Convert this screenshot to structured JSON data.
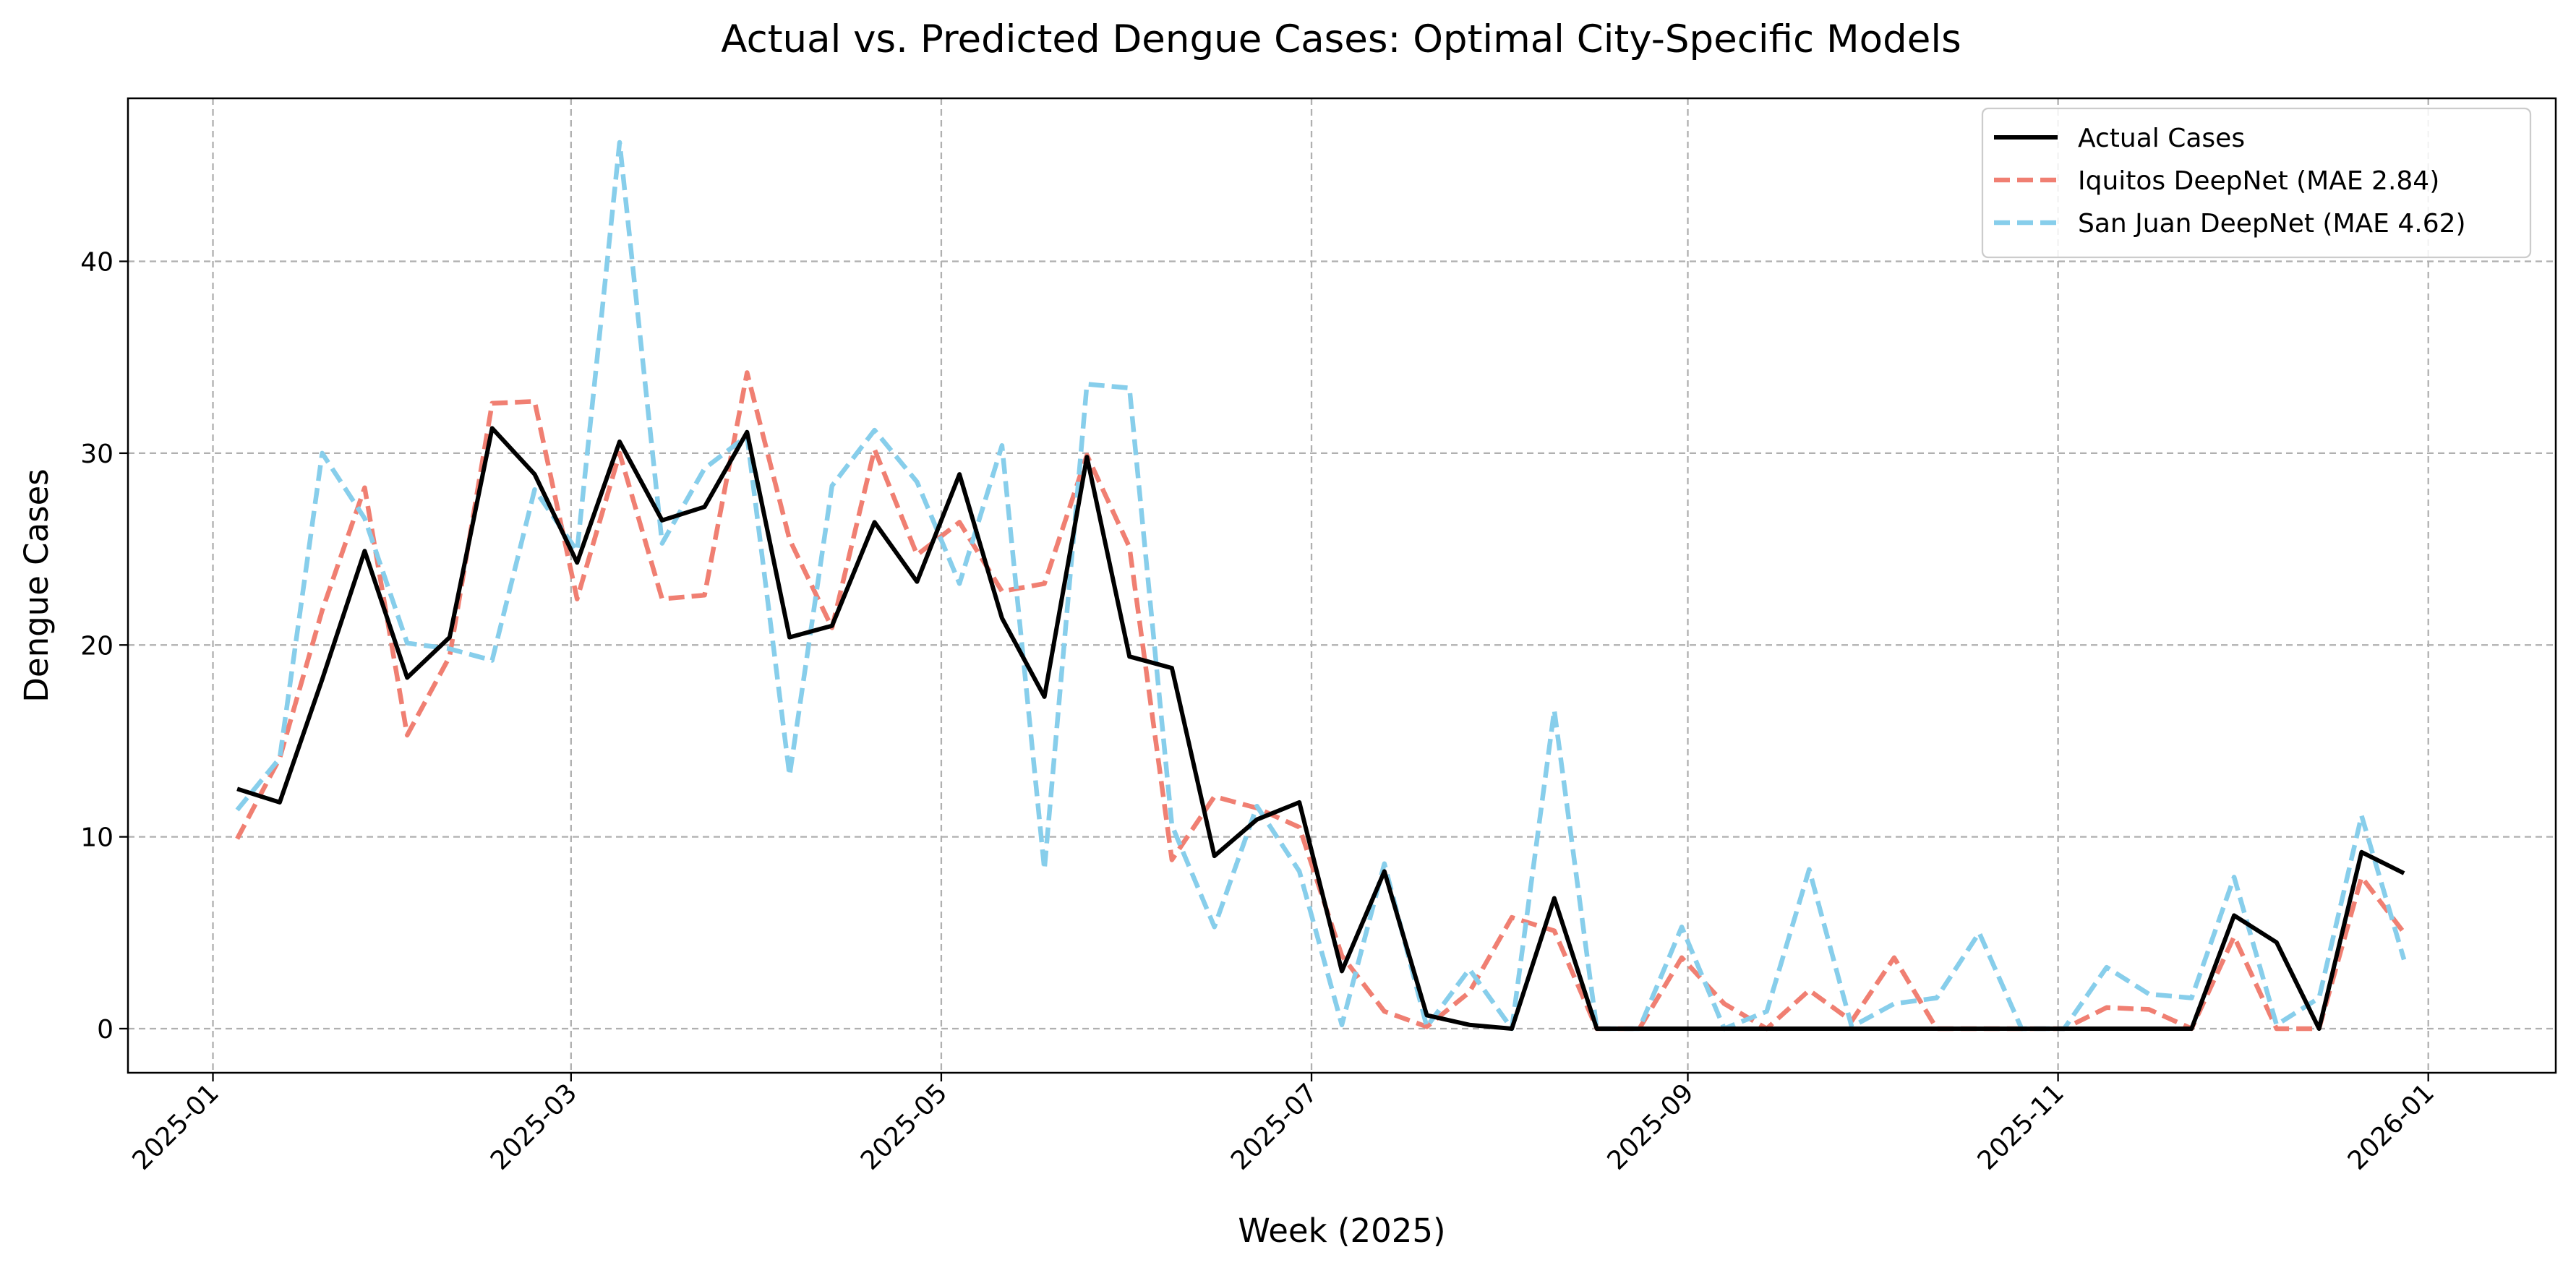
{
  "chart_data": {
    "type": "line",
    "title": "Actual vs. Predicted Dengue Cases: Optimal City-Specific Models",
    "xlabel": "Week (2025)",
    "ylabel": "Dengue Cases",
    "xlim": [
      "2024-12-18",
      "2026-01-22"
    ],
    "ylim": [
      -2.3,
      48.5
    ],
    "grid": true,
    "legend_position": "top-right",
    "x_ticks": [
      "2025-01",
      "2025-03",
      "2025-05",
      "2025-07",
      "2025-09",
      "2025-11",
      "2026-01"
    ],
    "y_ticks": [
      0,
      10,
      20,
      30,
      40
    ],
    "x": [
      "2025-01-05",
      "2025-01-12",
      "2025-01-19",
      "2025-01-26",
      "2025-02-02",
      "2025-02-09",
      "2025-02-16",
      "2025-02-23",
      "2025-03-02",
      "2025-03-09",
      "2025-03-16",
      "2025-03-23",
      "2025-03-30",
      "2025-04-06",
      "2025-04-13",
      "2025-04-20",
      "2025-04-27",
      "2025-05-04",
      "2025-05-11",
      "2025-05-18",
      "2025-05-25",
      "2025-06-01",
      "2025-06-08",
      "2025-06-15",
      "2025-06-22",
      "2025-06-29",
      "2025-07-06",
      "2025-07-13",
      "2025-07-20",
      "2025-07-27",
      "2025-08-03",
      "2025-08-10",
      "2025-08-17",
      "2025-08-24",
      "2025-08-31",
      "2025-09-07",
      "2025-09-14",
      "2025-09-21",
      "2025-09-28",
      "2025-10-05",
      "2025-10-12",
      "2025-10-19",
      "2025-10-26",
      "2025-11-02",
      "2025-11-09",
      "2025-11-16",
      "2025-11-23",
      "2025-11-30",
      "2025-12-07",
      "2025-12-14",
      "2025-12-21",
      "2025-12-28"
    ],
    "series": [
      {
        "name": "Actual Cases",
        "color": "#000000",
        "dashed": false,
        "values": [
          12.5,
          11.8,
          18.2,
          24.9,
          18.3,
          20.4,
          31.3,
          28.9,
          24.3,
          30.6,
          26.5,
          27.2,
          31.1,
          20.4,
          21.0,
          26.4,
          23.3,
          28.9,
          21.4,
          17.3,
          29.8,
          19.4,
          18.8,
          9.0,
          10.9,
          11.8,
          3.0,
          8.2,
          0.7,
          0.2,
          0.0,
          6.8,
          0.0,
          0.0,
          0.0,
          0.0,
          0.0,
          0.0,
          0.0,
          0.0,
          0.0,
          0.0,
          0.0,
          0.0,
          0.0,
          0.0,
          0.0,
          5.9,
          4.5,
          0.0,
          9.2,
          8.1
        ]
      },
      {
        "name": "Iquitos DeepNet (MAE 2.84)",
        "color": "#f07f72",
        "dashed": true,
        "values": [
          9.9,
          14.1,
          21.8,
          28.2,
          15.3,
          19.4,
          32.6,
          32.7,
          22.4,
          30.0,
          22.4,
          22.6,
          34.2,
          25.5,
          20.9,
          30.2,
          24.7,
          26.4,
          22.8,
          23.2,
          29.9,
          25.1,
          8.8,
          12.1,
          11.5,
          10.5,
          3.8,
          0.9,
          0.1,
          1.9,
          5.8,
          5.1,
          0.0,
          0.0,
          3.7,
          1.3,
          0.0,
          2.0,
          0.4,
          3.7,
          0.0,
          0.0,
          0.0,
          0.0,
          1.1,
          1.0,
          0.0,
          4.8,
          0.0,
          0.0,
          7.9,
          5.0
        ]
      },
      {
        "name": "San Juan DeepNet (MAE 4.62)",
        "color": "#87ceeb",
        "dashed": true,
        "values": [
          11.4,
          14.1,
          30.0,
          26.6,
          20.1,
          19.8,
          19.2,
          28.1,
          24.9,
          46.2,
          25.3,
          29.2,
          30.9,
          13.2,
          28.3,
          31.2,
          28.5,
          23.2,
          30.4,
          8.3,
          33.6,
          33.4,
          10.6,
          5.3,
          11.6,
          8.2,
          0.2,
          8.6,
          0.1,
          3.1,
          0.0,
          16.6,
          0.0,
          0.0,
          5.3,
          0.0,
          0.9,
          8.3,
          0.1,
          1.3,
          1.6,
          5.0,
          0.0,
          0.0,
          3.2,
          1.8,
          1.6,
          7.9,
          0.2,
          1.6,
          11.1,
          3.6
        ]
      }
    ]
  }
}
